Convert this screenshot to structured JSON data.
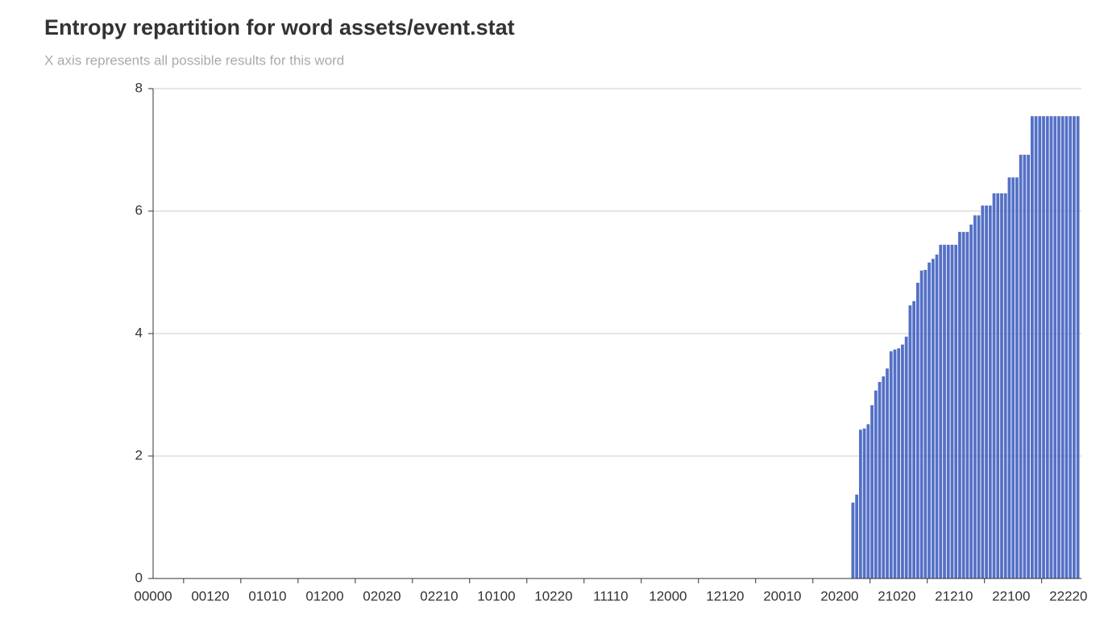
{
  "chart_data": {
    "type": "bar",
    "title": "Entropy repartition for word assets/event.stat",
    "subtitle": "X axis represents all possible results for this word",
    "color": "#5470c6",
    "grid": true,
    "ylim": [
      0,
      8
    ],
    "yticks": [
      0,
      2,
      4,
      6,
      8
    ],
    "categories": [
      "00000",
      null,
      null,
      null,
      null,
      null,
      null,
      null,
      null,
      null,
      null,
      null,
      null,
      null,
      null,
      "00120",
      null,
      null,
      null,
      null,
      null,
      null,
      null,
      null,
      null,
      null,
      null,
      null,
      null,
      null,
      "01010",
      null,
      null,
      null,
      null,
      null,
      null,
      null,
      null,
      null,
      null,
      null,
      null,
      null,
      null,
      "01200",
      null,
      null,
      null,
      null,
      null,
      null,
      null,
      null,
      null,
      null,
      null,
      null,
      null,
      null,
      "02020",
      null,
      null,
      null,
      null,
      null,
      null,
      null,
      null,
      null,
      null,
      null,
      null,
      null,
      null,
      "02210",
      null,
      null,
      null,
      null,
      null,
      null,
      null,
      null,
      null,
      null,
      null,
      null,
      null,
      null,
      "10100",
      null,
      null,
      null,
      null,
      null,
      null,
      null,
      null,
      null,
      null,
      null,
      null,
      null,
      null,
      "10220",
      null,
      null,
      null,
      null,
      null,
      null,
      null,
      null,
      null,
      null,
      null,
      null,
      null,
      null,
      "11110",
      null,
      null,
      null,
      null,
      null,
      null,
      null,
      null,
      null,
      null,
      null,
      null,
      null,
      null,
      "12000",
      null,
      null,
      null,
      null,
      null,
      null,
      null,
      null,
      null,
      null,
      null,
      null,
      null,
      null,
      "12120",
      null,
      null,
      null,
      null,
      null,
      null,
      null,
      null,
      null,
      null,
      null,
      null,
      null,
      null,
      "20010",
      null,
      null,
      null,
      null,
      null,
      null,
      null,
      null,
      null,
      null,
      null,
      null,
      null,
      null,
      "20200",
      null,
      null,
      null,
      null,
      null,
      null,
      null,
      null,
      null,
      null,
      null,
      null,
      null,
      null,
      "21020",
      null,
      null,
      null,
      null,
      null,
      null,
      null,
      null,
      null,
      null,
      null,
      null,
      null,
      null,
      "21210",
      null,
      null,
      null,
      null,
      null,
      null,
      null,
      null,
      null,
      null,
      null,
      null,
      null,
      null,
      "22100",
      null,
      null,
      null,
      null,
      null,
      null,
      null,
      null,
      null,
      null,
      null,
      null,
      null,
      null,
      "22220",
      null,
      null
    ],
    "values": [
      0,
      0,
      0,
      0,
      0,
      0,
      0,
      0,
      0,
      0,
      0,
      0,
      0,
      0,
      0,
      0,
      0,
      0,
      0,
      0,
      0,
      0,
      0,
      0,
      0,
      0,
      0,
      0,
      0,
      0,
      0,
      0,
      0,
      0,
      0,
      0,
      0,
      0,
      0,
      0,
      0,
      0,
      0,
      0,
      0,
      0,
      0,
      0,
      0,
      0,
      0,
      0,
      0,
      0,
      0,
      0,
      0,
      0,
      0,
      0,
      0,
      0,
      0,
      0,
      0,
      0,
      0,
      0,
      0,
      0,
      0,
      0,
      0,
      0,
      0,
      0,
      0,
      0,
      0,
      0,
      0,
      0,
      0,
      0,
      0,
      0,
      0,
      0,
      0,
      0,
      0,
      0,
      0,
      0,
      0,
      0,
      0,
      0,
      0,
      0,
      0,
      0,
      0,
      0,
      0,
      0,
      0,
      0,
      0,
      0,
      0,
      0,
      0,
      0,
      0,
      0,
      0,
      0,
      0,
      0,
      0,
      0,
      0,
      0,
      0,
      0,
      0,
      0,
      0,
      0,
      0,
      0,
      0,
      0,
      0,
      0,
      0,
      0,
      0,
      0,
      0,
      0,
      0,
      0,
      0,
      0,
      0,
      0,
      0,
      0,
      0,
      0,
      0,
      0,
      0,
      0,
      0,
      0,
      0,
      0,
      0,
      0,
      0,
      0,
      0,
      0,
      0,
      0,
      0,
      0,
      0,
      0,
      0,
      0,
      0,
      0,
      0,
      0,
      0,
      0,
      0,
      0,
      0,
      1.24,
      1.37,
      2.43,
      2.45,
      2.52,
      2.83,
      3.07,
      3.21,
      3.3,
      3.43,
      3.71,
      3.74,
      3.76,
      3.82,
      3.95,
      4.46,
      4.53,
      4.83,
      5.03,
      5.04,
      5.16,
      5.22,
      5.29,
      5.45,
      5.45,
      5.45,
      5.45,
      5.45,
      5.66,
      5.66,
      5.66,
      5.78,
      5.93,
      5.93,
      6.09,
      6.09,
      6.09,
      6.29,
      6.29,
      6.29,
      6.29,
      6.55,
      6.55,
      6.55,
      6.92,
      6.92,
      6.92,
      7.55,
      7.55,
      7.55,
      7.55,
      7.55,
      7.55,
      7.55,
      7.55,
      7.55,
      7.55,
      7.55,
      7.55,
      7.55
    ]
  }
}
